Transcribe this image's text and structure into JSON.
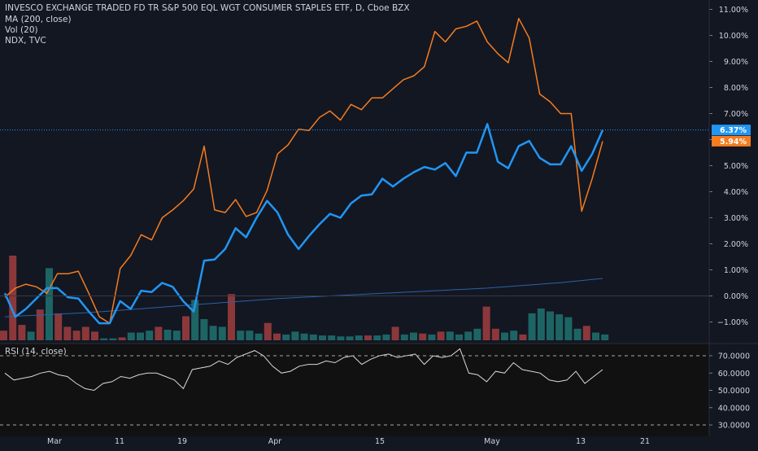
{
  "legend": {
    "title": "INVESCO EXCHANGE TRADED FD TR S&P 500 EQL WGT CONSUMER STAPLES ETF, D, Cboe BZX",
    "ma": "MA (200, close)",
    "vol": "Vol (20)",
    "compare": "NDX, TVC"
  },
  "rsi_label": "RSI (14, close)",
  "colors": {
    "background": "#131722",
    "main_series": "#2196f3",
    "compare_series": "#f57c1f",
    "ma": "#2962a8",
    "volume_up": "#26a69a",
    "volume_down": "#ef5350",
    "rsi": "#d9d9d9",
    "price_line": "#2196f3"
  },
  "chart_data": [
    {
      "type": "line",
      "title": "",
      "y_axis": {
        "unit": "%",
        "ticks": [
          "11.00%",
          "10.00%",
          "9.00%",
          "8.00%",
          "7.00%",
          "6.00%",
          "5.00%",
          "4.00%",
          "3.00%",
          "2.00%",
          "1.00%",
          "0.00%",
          "−1.00%"
        ],
        "range": [
          -1.6,
          11.3
        ]
      },
      "x_axis": {
        "ticks": [
          "Mar",
          "11",
          "19",
          "Apr",
          "15",
          "May",
          "13",
          "21"
        ]
      },
      "grid": false,
      "price_labels": [
        {
          "text": "6.37%",
          "value": 6.37,
          "series": "main"
        },
        {
          "text": "5.94%",
          "value": 5.94,
          "series": "compare"
        }
      ],
      "series": [
        {
          "key": "main",
          "values": [
            0.1,
            -0.8,
            -0.5,
            -0.1,
            0.3,
            0.3,
            -0.05,
            -0.1,
            -0.6,
            -1.05,
            -1.05,
            -0.2,
            -0.5,
            0.2,
            0.15,
            0.5,
            0.35,
            -0.2,
            -0.6,
            1.35,
            1.4,
            1.8,
            2.6,
            2.25,
            3.0,
            3.65,
            3.2,
            2.35,
            1.8,
            2.3,
            2.75,
            3.15,
            3.0,
            3.55,
            3.85,
            3.9,
            4.5,
            4.2,
            4.5,
            4.75,
            4.95,
            4.85,
            5.1,
            4.6,
            5.5,
            5.5,
            6.6,
            5.15,
            4.9,
            5.75,
            5.95,
            5.3,
            5.05,
            5.05,
            5.75,
            4.8,
            5.45,
            6.37
          ]
        },
        {
          "key": "compare",
          "values": [
            -0.05,
            0.3,
            0.45,
            0.35,
            0.1,
            0.85,
            0.85,
            0.95,
            0.1,
            -0.8,
            -1.05,
            1.05,
            1.55,
            2.35,
            2.15,
            3.0,
            3.3,
            3.65,
            4.1,
            5.75,
            3.3,
            3.2,
            3.7,
            3.05,
            3.2,
            4.05,
            5.45,
            5.8,
            6.4,
            6.35,
            6.85,
            7.1,
            6.75,
            7.35,
            7.15,
            7.6,
            7.6,
            7.95,
            8.3,
            8.45,
            8.8,
            10.15,
            9.75,
            10.25,
            10.35,
            10.55,
            9.75,
            9.3,
            8.95,
            10.65,
            9.9,
            7.75,
            7.45,
            7.0,
            7.0,
            3.25,
            4.5,
            5.94
          ]
        },
        {
          "key": "ma",
          "values": [
            -0.8,
            -0.78,
            -0.76,
            -0.74,
            -0.72,
            -0.7,
            -0.68,
            -0.66,
            -0.64,
            -0.61,
            -0.58,
            -0.55,
            -0.52,
            -0.49,
            -0.46,
            -0.43,
            -0.4,
            -0.37,
            -0.34,
            -0.31,
            -0.28,
            -0.25,
            -0.22,
            -0.19,
            -0.16,
            -0.13,
            -0.1,
            -0.08,
            -0.06,
            -0.04,
            -0.02,
            0.0,
            0.02,
            0.04,
            0.06,
            0.08,
            0.1,
            0.12,
            0.14,
            0.16,
            0.18,
            0.2,
            0.22,
            0.24,
            0.26,
            0.28,
            0.3,
            0.33,
            0.36,
            0.39,
            0.42,
            0.45,
            0.48,
            0.51,
            0.55,
            0.59,
            0.63,
            0.67
          ]
        }
      ]
    },
    {
      "type": "bar",
      "title": "",
      "name": "volume",
      "values": [
        10,
        88,
        16,
        9,
        32,
        75,
        28,
        14,
        10,
        14,
        9,
        2,
        2,
        3,
        8,
        8,
        10,
        14,
        11,
        10,
        25,
        42,
        22,
        15,
        14,
        48,
        10,
        10,
        7,
        18,
        7,
        6,
        9,
        7,
        6,
        5,
        5,
        4,
        4,
        5,
        5,
        5,
        6,
        14,
        6,
        8,
        7,
        6,
        9,
        9,
        6,
        9,
        12,
        35,
        12,
        8,
        10,
        6,
        28,
        33,
        30,
        27,
        24,
        12,
        15,
        8,
        6
      ],
      "up": [
        0,
        0,
        0,
        1,
        0,
        1,
        0,
        0,
        0,
        0,
        0,
        1,
        1,
        0,
        1,
        1,
        1,
        0,
        1,
        1,
        0,
        1,
        1,
        1,
        1,
        0,
        1,
        1,
        1,
        0,
        0,
        1,
        1,
        1,
        1,
        1,
        1,
        1,
        1,
        1,
        0,
        1,
        1,
        0,
        1,
        1,
        0,
        1,
        0,
        1,
        1,
        1,
        1,
        0,
        0,
        1,
        1,
        0,
        1,
        1,
        1,
        1,
        1,
        1,
        0,
        1,
        1
      ]
    },
    {
      "type": "line",
      "title": "",
      "name": "RSI",
      "y_axis": {
        "ticks": [
          "70.0000",
          "60.0000",
          "50.0000",
          "40.0000",
          "30.0000"
        ],
        "range": [
          27,
          75
        ]
      },
      "bands": [
        70,
        30
      ],
      "values": [
        60,
        56,
        57,
        58,
        60,
        61,
        59,
        58,
        54,
        51,
        50,
        54,
        55,
        58,
        57,
        59,
        60,
        60,
        58,
        56,
        51,
        62,
        63,
        64,
        67,
        65,
        69,
        71,
        73,
        70,
        64,
        60,
        61,
        64,
        65,
        65,
        67,
        66,
        69,
        70,
        65,
        68,
        70,
        71,
        69,
        70,
        71,
        65,
        70,
        69,
        70,
        74,
        60,
        59,
        55,
        61,
        60,
        66,
        62,
        61,
        60,
        56,
        55,
        56,
        61,
        54,
        58,
        62
      ]
    }
  ]
}
